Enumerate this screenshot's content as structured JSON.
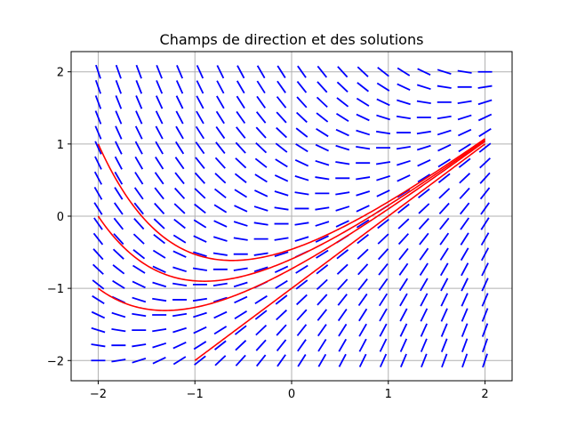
{
  "chart_data": {
    "type": "line",
    "title": "Champs de direction et des solutions",
    "xlabel": "",
    "ylabel": "",
    "xlim": [
      -2.28,
      2.28
    ],
    "ylim": [
      -2.28,
      2.28
    ],
    "grid": true,
    "x_ticks": [
      -2,
      -1,
      0,
      1,
      2
    ],
    "y_ticks": [
      -2,
      -1,
      0,
      1,
      2
    ],
    "x_tick_labels": [
      "−2",
      "−1",
      "0",
      "1",
      "2"
    ],
    "y_tick_labels": [
      "−2",
      "−1",
      "0",
      "1",
      "2"
    ],
    "direction_field": {
      "equation": "y' = x - y",
      "grid_min": -2,
      "grid_max": 2,
      "grid_count": 20,
      "color": "#0000ff"
    },
    "series": [
      {
        "x0": -2,
        "y0": 1,
        "color": "#ff0000"
      },
      {
        "x0": -2,
        "y0": 0,
        "color": "#ff0000"
      },
      {
        "x0": -2,
        "y0": -1,
        "color": "#ff0000"
      },
      {
        "x0": -1,
        "y0": -2,
        "color": "#ff0000"
      }
    ]
  }
}
